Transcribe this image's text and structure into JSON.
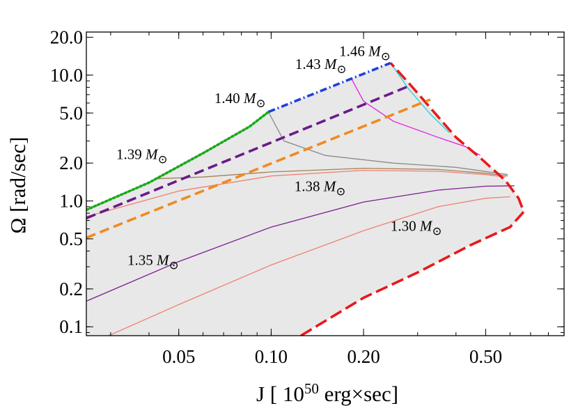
{
  "chart_data": {
    "type": "line",
    "title": "",
    "xlabel": "J [ 10^50 erg×sec]",
    "xlabel_parts": {
      "prefix": "J [ 10",
      "exp": "50",
      "suffix": " erg×sec]"
    },
    "ylabel": "Ω [rad/sec]",
    "x_scale": "log",
    "y_scale": "log",
    "xlim": [
      0.025,
      0.9
    ],
    "ylim": [
      0.085,
      22
    ],
    "x_ticks": [
      {
        "value": 0.05,
        "label": "0.05"
      },
      {
        "value": 0.1,
        "label": "0.10"
      },
      {
        "value": 0.2,
        "label": "0.20"
      },
      {
        "value": 0.5,
        "label": "0.50"
      }
    ],
    "y_ticks": [
      {
        "value": 0.1,
        "label": "0.1"
      },
      {
        "value": 0.2,
        "label": "0.2"
      },
      {
        "value": 0.5,
        "label": "0.5"
      },
      {
        "value": 1.0,
        "label": "1.0"
      },
      {
        "value": 2.0,
        "label": "2.0"
      },
      {
        "value": 5.0,
        "label": "5.0"
      },
      {
        "value": 10.0,
        "label": "10.0"
      },
      {
        "value": 20.0,
        "label": "20.0"
      }
    ],
    "region_fill": "#e8e8e8",
    "boundary_curves": [
      {
        "id": "red-boundary",
        "color": "#e8191c",
        "style": "long-dash",
        "points": [
          [
            0.125,
            0.085
          ],
          [
            0.2,
            0.17
          ],
          [
            0.3,
            0.27
          ],
          [
            0.45,
            0.45
          ],
          [
            0.6,
            0.62
          ],
          [
            0.665,
            0.82
          ],
          [
            0.64,
            1.05
          ],
          [
            0.58,
            1.45
          ],
          [
            0.48,
            2.2
          ],
          [
            0.4,
            3.2
          ],
          [
            0.33,
            5.5
          ],
          [
            0.285,
            8.3
          ],
          [
            0.245,
            12.5
          ]
        ]
      },
      {
        "id": "blue-edge",
        "color": "#1f3fe0",
        "style": "dash-dot",
        "points": [
          [
            0.098,
            5.1
          ],
          [
            0.245,
            12.5
          ]
        ]
      },
      {
        "id": "green-edge",
        "color": "#1aaa1a",
        "style": "dotted",
        "points": [
          [
            0.025,
            0.85
          ],
          [
            0.04,
            1.4
          ],
          [
            0.06,
            2.4
          ],
          [
            0.085,
            3.9
          ],
          [
            0.098,
            5.1
          ]
        ]
      },
      {
        "id": "purple-edge",
        "color": "#6a1a8a",
        "style": "dashed",
        "points": [
          [
            0.025,
            0.73
          ],
          [
            0.285,
            8.3
          ]
        ]
      },
      {
        "id": "orange-edge",
        "color": "#f08a1e",
        "style": "dashed",
        "points": [
          [
            0.025,
            0.51
          ],
          [
            0.33,
            6.4
          ]
        ]
      }
    ],
    "mass_curves": [
      {
        "name": "1.30",
        "color": "#f08070",
        "points": [
          [
            0.025,
            0.071
          ],
          [
            0.05,
            0.15
          ],
          [
            0.1,
            0.31
          ],
          [
            0.2,
            0.58
          ],
          [
            0.35,
            0.9
          ],
          [
            0.5,
            1.05
          ],
          [
            0.6,
            1.08
          ]
        ]
      },
      {
        "name": "1.35",
        "color": "#7a2090",
        "points": [
          [
            0.025,
            0.16
          ],
          [
            0.05,
            0.33
          ],
          [
            0.1,
            0.62
          ],
          [
            0.2,
            0.98
          ],
          [
            0.35,
            1.22
          ],
          [
            0.5,
            1.31
          ],
          [
            0.62,
            1.32
          ]
        ]
      },
      {
        "name": "1.38",
        "color": "#f08070",
        "points": [
          [
            0.025,
            0.75
          ],
          [
            0.05,
            1.2
          ],
          [
            0.1,
            1.58
          ],
          [
            0.2,
            1.75
          ],
          [
            0.35,
            1.72
          ],
          [
            0.5,
            1.62
          ],
          [
            0.58,
            1.55
          ]
        ]
      },
      {
        "name": "1.39",
        "color": "#a57f5a",
        "points": [
          [
            0.042,
            1.5
          ],
          [
            0.06,
            1.55
          ],
          [
            0.1,
            1.7
          ],
          [
            0.2,
            1.82
          ],
          [
            0.35,
            1.78
          ],
          [
            0.5,
            1.66
          ],
          [
            0.59,
            1.58
          ]
        ]
      },
      {
        "name": "1.40",
        "color": "#8a8a8a",
        "points": [
          [
            0.098,
            5.1
          ],
          [
            0.11,
            3.0
          ],
          [
            0.15,
            2.3
          ],
          [
            0.25,
            2.0
          ],
          [
            0.4,
            1.85
          ],
          [
            0.59,
            1.62
          ]
        ]
      },
      {
        "name": "1.43",
        "color": "#e020e0",
        "points": [
          [
            0.182,
            9.5
          ],
          [
            0.2,
            6.2
          ],
          [
            0.25,
            4.3
          ],
          [
            0.35,
            3.2
          ],
          [
            0.43,
            2.7
          ],
          [
            0.48,
            2.3
          ]
        ]
      },
      {
        "name": "1.46",
        "color": "#20d0d8",
        "points": [
          [
            0.245,
            12.5
          ],
          [
            0.28,
            7.8
          ],
          [
            0.33,
            4.9
          ],
          [
            0.38,
            3.5
          ]
        ]
      }
    ],
    "annotations": [
      {
        "text": "1.46",
        "unit": "M",
        "sub": "⊙",
        "x": 0.245,
        "y": 14.2
      },
      {
        "text": "1.43",
        "unit": "M",
        "sub": "⊙",
        "x": 0.176,
        "y": 11.2
      },
      {
        "text": "1.40",
        "unit": "M",
        "sub": "⊙",
        "x": 0.096,
        "y": 6.0
      },
      {
        "text": "1.39",
        "unit": "M",
        "sub": "⊙",
        "x": 0.046,
        "y": 2.15
      },
      {
        "text": "1.38",
        "unit": "M",
        "sub": "⊙",
        "x": 0.175,
        "y": 1.2
      },
      {
        "text": "1.35",
        "unit": "M",
        "sub": "⊙",
        "x": 0.05,
        "y": 0.31
      },
      {
        "text": "1.30",
        "unit": "M",
        "sub": "⊙",
        "x": 0.36,
        "y": 0.58
      }
    ],
    "grid": false,
    "legend": "none"
  }
}
